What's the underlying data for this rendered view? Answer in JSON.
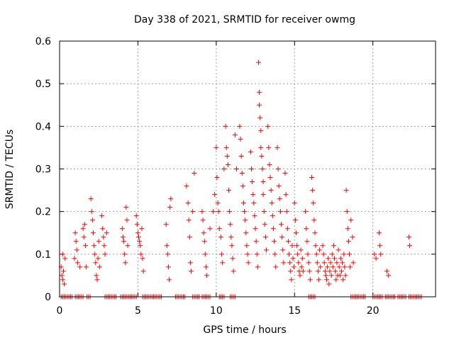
{
  "chart_data": {
    "type": "scatter",
    "title": "Day 338 of 2021, SRMTID for receiver owmg",
    "xlabel": "GPS time / hours",
    "ylabel": "SRMTID / TECUs",
    "xlim": [
      0,
      24
    ],
    "ylim": [
      0,
      0.6
    ],
    "xticks": [
      0,
      5,
      10,
      15,
      20
    ],
    "yticks": [
      0,
      0.1,
      0.2,
      0.3,
      0.4,
      0.5,
      0.6
    ],
    "grid": true,
    "marker": "+",
    "color": "#ff0000",
    "series": [
      {
        "name": "SRMTID",
        "points": [
          [
            0.1,
            0.07
          ],
          [
            0.15,
            0.05
          ],
          [
            0.2,
            0.04
          ],
          [
            0.2,
            0.1
          ],
          [
            0.25,
            0.06
          ],
          [
            0.3,
            0.03
          ],
          [
            0.35,
            0.09
          ],
          [
            0.95,
            0.09
          ],
          [
            1.0,
            0.15
          ],
          [
            1.05,
            0.13
          ],
          [
            1.1,
            0.11
          ],
          [
            1.15,
            0.08
          ],
          [
            1.3,
            0.07
          ],
          [
            1.5,
            0.16
          ],
          [
            1.55,
            0.14
          ],
          [
            1.6,
            0.17
          ],
          [
            1.65,
            0.12
          ],
          [
            1.7,
            0.07
          ],
          [
            2.0,
            0.23
          ],
          [
            2.05,
            0.2
          ],
          [
            2.1,
            0.18
          ],
          [
            2.15,
            0.15
          ],
          [
            2.2,
            0.12
          ],
          [
            2.25,
            0.1
          ],
          [
            2.3,
            0.08
          ],
          [
            2.35,
            0.05
          ],
          [
            2.4,
            0.04
          ],
          [
            2.45,
            0.09
          ],
          [
            2.5,
            0.13
          ],
          [
            2.55,
            0.07
          ],
          [
            2.7,
            0.19
          ],
          [
            2.75,
            0.16
          ],
          [
            2.8,
            0.14
          ],
          [
            2.85,
            0.12
          ],
          [
            2.9,
            0.1
          ],
          [
            3.0,
            0.15
          ],
          [
            4.0,
            0.16
          ],
          [
            4.05,
            0.14
          ],
          [
            4.1,
            0.13
          ],
          [
            4.15,
            0.1
          ],
          [
            4.2,
            0.08
          ],
          [
            4.25,
            0.21
          ],
          [
            4.3,
            0.18
          ],
          [
            4.35,
            0.12
          ],
          [
            4.9,
            0.19
          ],
          [
            4.95,
            0.17
          ],
          [
            5.0,
            0.15
          ],
          [
            5.05,
            0.14
          ],
          [
            5.1,
            0.13
          ],
          [
            5.15,
            0.12
          ],
          [
            5.2,
            0.1
          ],
          [
            5.25,
            0.16
          ],
          [
            5.3,
            0.09
          ],
          [
            5.35,
            0.06
          ],
          [
            6.8,
            0.17
          ],
          [
            6.85,
            0.12
          ],
          [
            6.9,
            0.1
          ],
          [
            6.95,
            0.07
          ],
          [
            7.0,
            0.04
          ],
          [
            7.05,
            0.21
          ],
          [
            7.1,
            0.23
          ],
          [
            8.1,
            0.26
          ],
          [
            8.2,
            0.22
          ],
          [
            8.25,
            0.18
          ],
          [
            8.3,
            0.14
          ],
          [
            8.35,
            0.08
          ],
          [
            8.4,
            0.06
          ],
          [
            8.5,
            0.2
          ],
          [
            8.6,
            0.29
          ],
          [
            9.1,
            0.2
          ],
          [
            9.15,
            0.18
          ],
          [
            9.2,
            0.15
          ],
          [
            9.25,
            0.13
          ],
          [
            9.3,
            0.1
          ],
          [
            9.35,
            0.07
          ],
          [
            9.4,
            0.05
          ],
          [
            9.6,
            0.16
          ],
          [
            9.8,
            0.2
          ],
          [
            9.9,
            0.24
          ],
          [
            10.0,
            0.35
          ],
          [
            10.05,
            0.28
          ],
          [
            10.1,
            0.22
          ],
          [
            10.15,
            0.2
          ],
          [
            10.2,
            0.16
          ],
          [
            10.3,
            0.14
          ],
          [
            10.35,
            0.1
          ],
          [
            10.4,
            0.08
          ],
          [
            10.5,
            0.3
          ],
          [
            10.6,
            0.4
          ],
          [
            10.65,
            0.35
          ],
          [
            10.7,
            0.33
          ],
          [
            10.75,
            0.31
          ],
          [
            10.8,
            0.25
          ],
          [
            10.85,
            0.2
          ],
          [
            10.9,
            0.17
          ],
          [
            10.95,
            0.14
          ],
          [
            11.0,
            0.12
          ],
          [
            11.05,
            0.09
          ],
          [
            11.1,
            0.06
          ],
          [
            11.2,
            0.38
          ],
          [
            11.3,
            0.3
          ],
          [
            11.5,
            0.4
          ],
          [
            11.55,
            0.37
          ],
          [
            11.6,
            0.33
          ],
          [
            11.65,
            0.29
          ],
          [
            11.7,
            0.26
          ],
          [
            11.75,
            0.22
          ],
          [
            11.8,
            0.2
          ],
          [
            11.85,
            0.18
          ],
          [
            11.9,
            0.15
          ],
          [
            11.95,
            0.12
          ],
          [
            12.0,
            0.1
          ],
          [
            12.05,
            0.08
          ],
          [
            12.2,
            0.34
          ],
          [
            12.25,
            0.3
          ],
          [
            12.3,
            0.27
          ],
          [
            12.35,
            0.24
          ],
          [
            12.4,
            0.22
          ],
          [
            12.45,
            0.19
          ],
          [
            12.5,
            0.16
          ],
          [
            12.55,
            0.13
          ],
          [
            12.6,
            0.1
          ],
          [
            12.65,
            0.07
          ],
          [
            12.7,
            0.55
          ],
          [
            12.75,
            0.48
          ],
          [
            12.75,
            0.45
          ],
          [
            12.8,
            0.42
          ],
          [
            12.85,
            0.39
          ],
          [
            12.85,
            0.35
          ],
          [
            12.9,
            0.33
          ],
          [
            12.95,
            0.3
          ],
          [
            13.0,
            0.27
          ],
          [
            13.0,
            0.24
          ],
          [
            13.05,
            0.2
          ],
          [
            13.1,
            0.17
          ],
          [
            13.15,
            0.14
          ],
          [
            13.2,
            0.11
          ],
          [
            13.3,
            0.4
          ],
          [
            13.35,
            0.35
          ],
          [
            13.4,
            0.31
          ],
          [
            13.45,
            0.28
          ],
          [
            13.5,
            0.25
          ],
          [
            13.55,
            0.22
          ],
          [
            13.6,
            0.19
          ],
          [
            13.65,
            0.16
          ],
          [
            13.7,
            0.13
          ],
          [
            13.75,
            0.1
          ],
          [
            13.8,
            0.07
          ],
          [
            13.9,
            0.35
          ],
          [
            13.95,
            0.3
          ],
          [
            14.0,
            0.26
          ],
          [
            14.05,
            0.23
          ],
          [
            14.1,
            0.2
          ],
          [
            14.15,
            0.17
          ],
          [
            14.2,
            0.14
          ],
          [
            14.25,
            0.11
          ],
          [
            14.3,
            0.08
          ],
          [
            14.4,
            0.29
          ],
          [
            14.45,
            0.24
          ],
          [
            14.5,
            0.2
          ],
          [
            14.55,
            0.16
          ],
          [
            14.6,
            0.13
          ],
          [
            14.65,
            0.1
          ],
          [
            14.7,
            0.08
          ],
          [
            14.75,
            0.06
          ],
          [
            14.8,
            0.04
          ],
          [
            14.85,
            0.12
          ],
          [
            14.9,
            0.09
          ],
          [
            14.95,
            0.07
          ],
          [
            15.0,
            0.22
          ],
          [
            15.05,
            0.18
          ],
          [
            15.1,
            0.15
          ],
          [
            15.15,
            0.12
          ],
          [
            15.2,
            0.1
          ],
          [
            15.25,
            0.08
          ],
          [
            15.3,
            0.06
          ],
          [
            15.35,
            0.05
          ],
          [
            15.4,
            0.11
          ],
          [
            15.45,
            0.07
          ],
          [
            15.5,
            0.09
          ],
          [
            15.55,
            0.06
          ],
          [
            15.7,
            0.2
          ],
          [
            15.75,
            0.16
          ],
          [
            15.8,
            0.13
          ],
          [
            15.85,
            0.1
          ],
          [
            15.9,
            0.08
          ],
          [
            15.95,
            0.06
          ],
          [
            16.0,
            0.04
          ],
          [
            16.1,
            0.28
          ],
          [
            16.15,
            0.25
          ],
          [
            16.2,
            0.22
          ],
          [
            16.25,
            0.18
          ],
          [
            16.3,
            0.15
          ],
          [
            16.35,
            0.12
          ],
          [
            16.4,
            0.1
          ],
          [
            16.45,
            0.08
          ],
          [
            16.5,
            0.06
          ],
          [
            16.55,
            0.04
          ],
          [
            16.6,
            0.11
          ],
          [
            16.65,
            0.07
          ],
          [
            16.8,
            0.12
          ],
          [
            16.85,
            0.1
          ],
          [
            16.9,
            0.08
          ],
          [
            16.95,
            0.06
          ],
          [
            17.0,
            0.05
          ],
          [
            17.05,
            0.04
          ],
          [
            17.1,
            0.07
          ],
          [
            17.15,
            0.09
          ],
          [
            17.2,
            0.03
          ],
          [
            17.25,
            0.06
          ],
          [
            17.3,
            0.08
          ],
          [
            17.35,
            0.05
          ],
          [
            17.4,
            0.1
          ],
          [
            17.45,
            0.07
          ],
          [
            17.5,
            0.12
          ],
          [
            17.55,
            0.09
          ],
          [
            17.6,
            0.06
          ],
          [
            17.65,
            0.04
          ],
          [
            17.7,
            0.08
          ],
          [
            17.75,
            0.05
          ],
          [
            17.8,
            0.11
          ],
          [
            17.85,
            0.07
          ],
          [
            17.9,
            0.05
          ],
          [
            17.95,
            0.09
          ],
          [
            18.0,
            0.06
          ],
          [
            18.05,
            0.08
          ],
          [
            18.1,
            0.04
          ],
          [
            18.15,
            0.1
          ],
          [
            18.2,
            0.07
          ],
          [
            18.25,
            0.05
          ],
          [
            18.3,
            0.25
          ],
          [
            18.35,
            0.2
          ],
          [
            18.4,
            0.16
          ],
          [
            18.45,
            0.13
          ],
          [
            18.5,
            0.1
          ],
          [
            18.55,
            0.07
          ],
          [
            18.6,
            0.18
          ],
          [
            18.7,
            0.14
          ],
          [
            18.75,
            0.08
          ],
          [
            20.1,
            0.1
          ],
          [
            20.2,
            0.09
          ],
          [
            20.4,
            0.15
          ],
          [
            20.45,
            0.12
          ],
          [
            20.5,
            0.1
          ],
          [
            20.9,
            0.06
          ],
          [
            21.0,
            0.05
          ],
          [
            22.3,
            0.14
          ],
          [
            22.35,
            0.12
          ]
        ]
      }
    ],
    "zero_segments": [
      [
        0.1,
        0.8
      ],
      [
        1.0,
        1.5
      ],
      [
        1.75,
        2.0
      ],
      [
        2.9,
        3.6
      ],
      [
        3.9,
        4.9
      ],
      [
        5.3,
        6.5
      ],
      [
        7.4,
        8.0
      ],
      [
        8.5,
        8.9
      ],
      [
        9.1,
        9.6
      ],
      [
        10.2,
        10.5
      ],
      [
        10.9,
        11.2
      ],
      [
        15.9,
        16.3
      ],
      [
        18.6,
        19.5
      ],
      [
        20.0,
        20.6
      ],
      [
        20.8,
        21.4
      ],
      [
        21.6,
        22.1
      ],
      [
        22.3,
        23.1
      ]
    ]
  }
}
